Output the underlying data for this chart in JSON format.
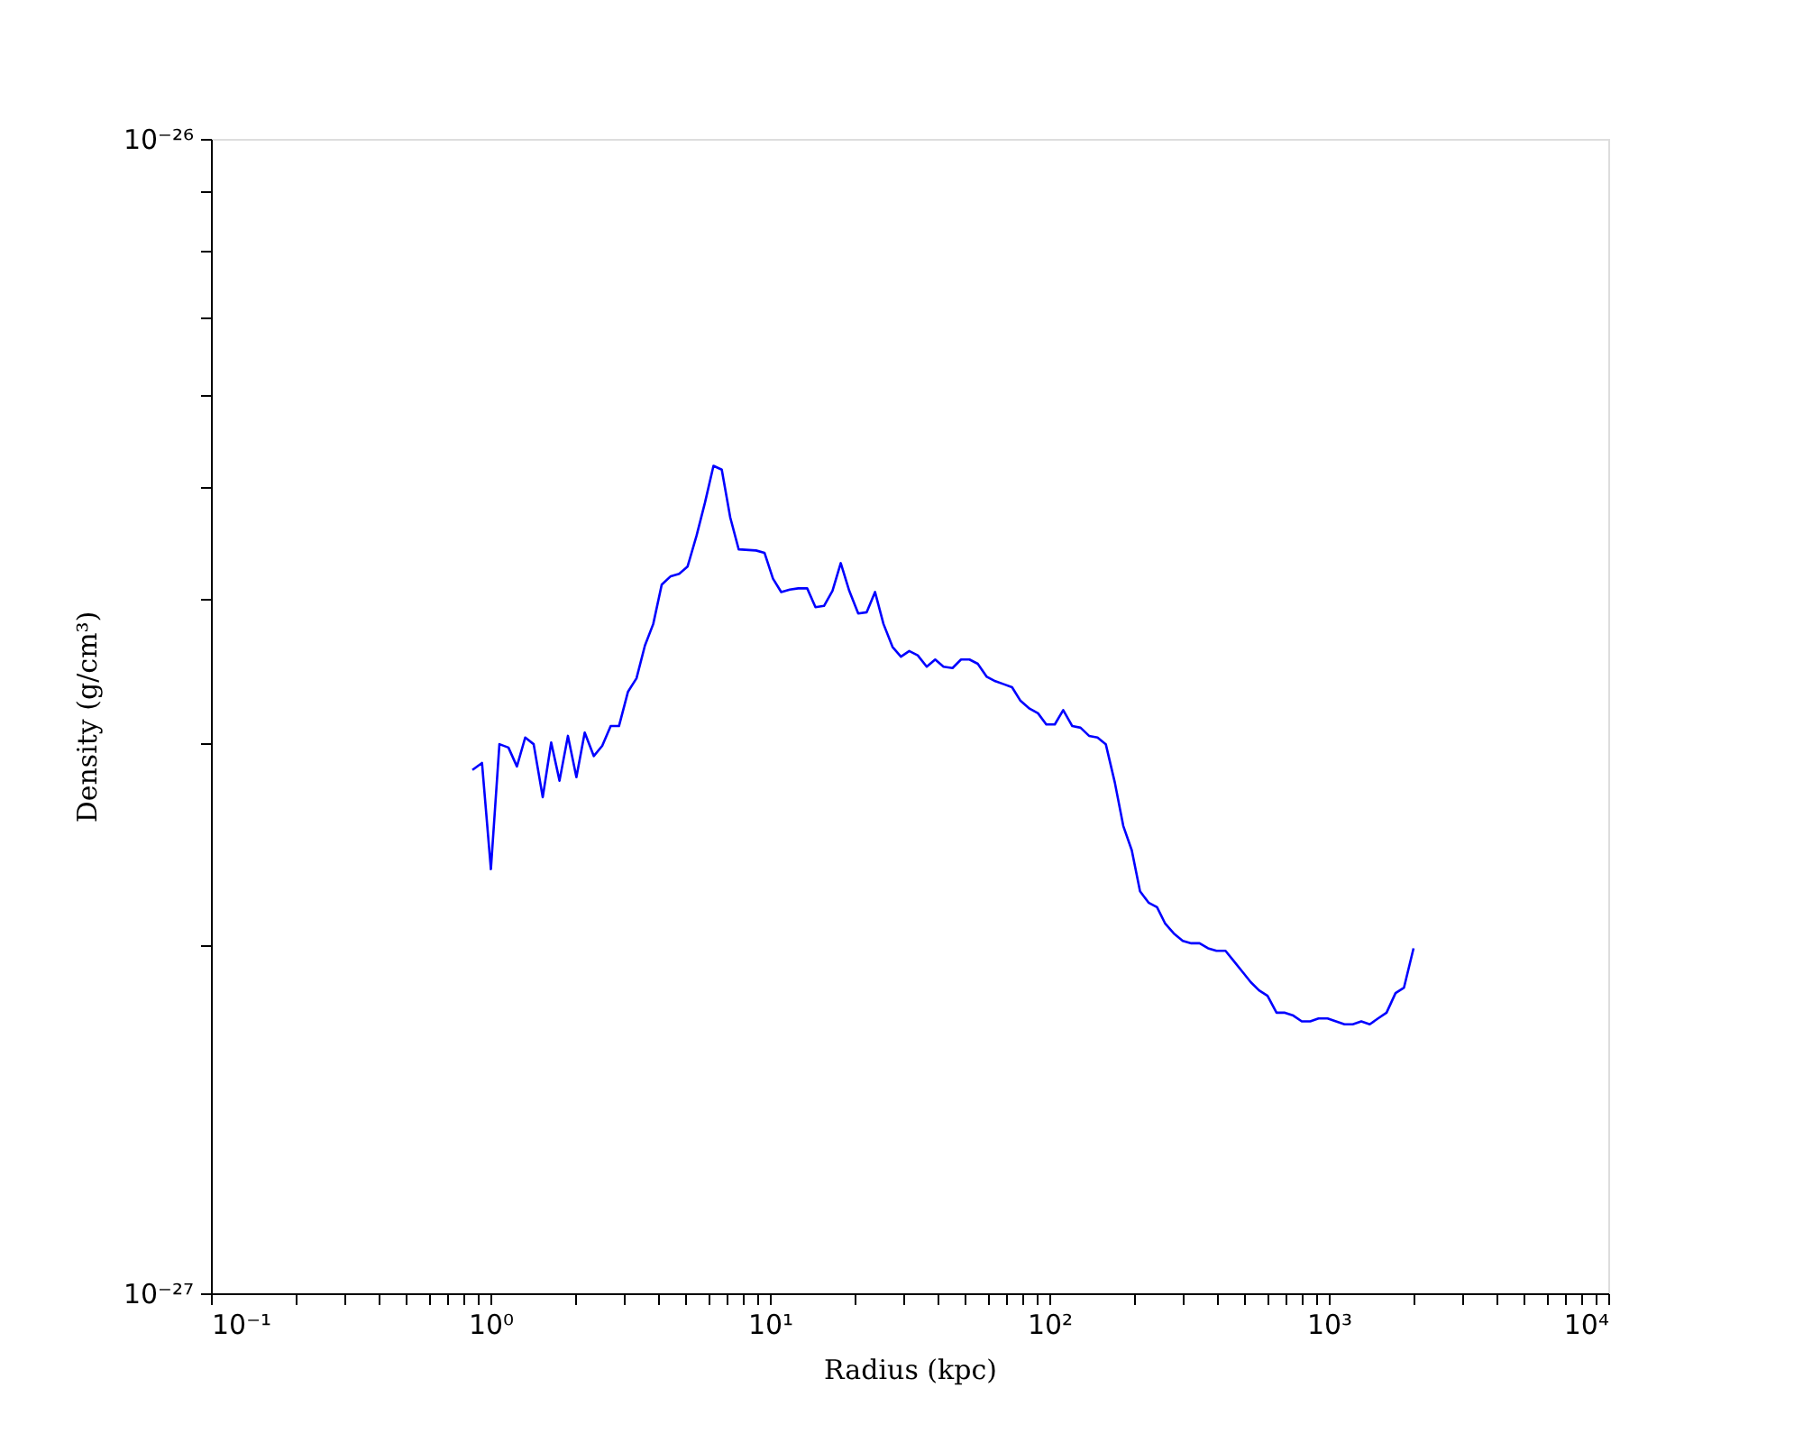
{
  "chart_data": {
    "type": "line",
    "xlabel": "Radius  (kpc)",
    "ylabel": "Density  (g/cm³)",
    "log": "xy",
    "grid": false,
    "marker": "none",
    "line_style": "solid",
    "xlim": [
      0.1,
      10000
    ],
    "ylim": [
      1e-27,
      1e-26
    ],
    "xticks": [
      {
        "value": 0.1,
        "label": "10⁻¹"
      },
      {
        "value": 0.2,
        "label": null
      },
      {
        "value": 0.3,
        "label": null
      },
      {
        "value": 0.4,
        "label": null
      },
      {
        "value": 0.5,
        "label": null
      },
      {
        "value": 0.6,
        "label": null
      },
      {
        "value": 0.7,
        "label": null
      },
      {
        "value": 0.8,
        "label": null
      },
      {
        "value": 0.9,
        "label": null
      },
      {
        "value": 1,
        "label": "10⁰"
      },
      {
        "value": 2,
        "label": null
      },
      {
        "value": 3,
        "label": null
      },
      {
        "value": 4,
        "label": null
      },
      {
        "value": 5,
        "label": null
      },
      {
        "value": 6,
        "label": null
      },
      {
        "value": 7,
        "label": null
      },
      {
        "value": 8,
        "label": null
      },
      {
        "value": 9,
        "label": null
      },
      {
        "value": 10,
        "label": "10¹"
      },
      {
        "value": 20,
        "label": null
      },
      {
        "value": 30,
        "label": null
      },
      {
        "value": 40,
        "label": null
      },
      {
        "value": 50,
        "label": null
      },
      {
        "value": 60,
        "label": null
      },
      {
        "value": 70,
        "label": null
      },
      {
        "value": 80,
        "label": null
      },
      {
        "value": 90,
        "label": null
      },
      {
        "value": 100,
        "label": "10²"
      },
      {
        "value": 200,
        "label": null
      },
      {
        "value": 300,
        "label": null
      },
      {
        "value": 400,
        "label": null
      },
      {
        "value": 500,
        "label": null
      },
      {
        "value": 600,
        "label": null
      },
      {
        "value": 700,
        "label": null
      },
      {
        "value": 800,
        "label": null
      },
      {
        "value": 900,
        "label": null
      },
      {
        "value": 1000,
        "label": "10³"
      },
      {
        "value": 2000,
        "label": null
      },
      {
        "value": 3000,
        "label": null
      },
      {
        "value": 4000,
        "label": null
      },
      {
        "value": 5000,
        "label": null
      },
      {
        "value": 6000,
        "label": null
      },
      {
        "value": 7000,
        "label": null
      },
      {
        "value": 8000,
        "label": null
      },
      {
        "value": 9000,
        "label": null
      },
      {
        "value": 10000,
        "label": "10⁴"
      }
    ],
    "yticks": [
      {
        "value": 1e-27,
        "label": "10⁻²⁷"
      },
      {
        "value": 2e-27,
        "label": null
      },
      {
        "value": 3e-27,
        "label": null
      },
      {
        "value": 4e-27,
        "label": null
      },
      {
        "value": 5e-27,
        "label": null
      },
      {
        "value": 6e-27,
        "label": null
      },
      {
        "value": 7e-27,
        "label": null
      },
      {
        "value": 8e-27,
        "label": null
      },
      {
        "value": 9e-27,
        "label": null
      },
      {
        "value": 1e-26,
        "label": "10⁻²⁶"
      }
    ],
    "series": [
      {
        "color": "#0000ff",
        "x": [
          0.862,
          0.933,
          1.004,
          1.077,
          1.16,
          1.244,
          1.332,
          1.428,
          1.539,
          1.65,
          1.767,
          1.894,
          2.031,
          2.175,
          2.343,
          2.512,
          2.694,
          2.884,
          3.107,
          3.332,
          3.572,
          3.825,
          4.102,
          4.418,
          4.737,
          5.073,
          5.463,
          5.857,
          6.283,
          6.727,
          7.214,
          7.734,
          8.92,
          9.564,
          10.26,
          10.98,
          11.78,
          12.63,
          13.6,
          14.56,
          15.62,
          16.75,
          17.93,
          19.23,
          20.71,
          22.21,
          23.78,
          25.5,
          27.47,
          29.44,
          31.53,
          33.81,
          36.41,
          39.04,
          41.81,
          45.03,
          48.3,
          51.79,
          55.45,
          59.72,
          64.05,
          68.68,
          73.55,
          78.86,
          84.92,
          91.08,
          97.5,
          104.6,
          112.1,
          120.8,
          129.3,
          138.7,
          148.7,
          159.2,
          171.5,
          183.9,
          197.2,
          211.1,
          226.4,
          242.8,
          259.9,
          278.7,
          300.2,
          321.9,
          344.7,
          369.7,
          396.3,
          426.9,
          457.1,
          490.1,
          525.6,
          562.8,
          603.4,
          650.1,
          696.8,
          746.4,
          800.4,
          858.1,
          918.9,
          989.7,
          1061,
          1138,
          1218,
          1307,
          1401,
          1500,
          1609,
          1733,
          1858,
          2010
        ],
        "values": [
          2.84e-27,
          2.88e-27,
          2.33e-27,
          2.99e-27,
          2.97e-27,
          2.86e-27,
          3.03e-27,
          2.99e-27,
          2.69e-27,
          3e-27,
          2.78e-27,
          3.04e-27,
          2.8e-27,
          3.06e-27,
          2.92e-27,
          2.98e-27,
          3.1e-27,
          3.1e-27,
          3.32e-27,
          3.41e-27,
          3.64e-27,
          3.8e-27,
          4.11e-27,
          4.18e-27,
          4.2e-27,
          4.26e-27,
          4.53e-27,
          4.84e-27,
          5.21e-27,
          5.17e-27,
          4.7e-27,
          4.41e-27,
          4.4e-27,
          4.38e-27,
          4.16e-27,
          4.05e-27,
          4.07e-27,
          4.08e-27,
          4.08e-27,
          3.93e-27,
          3.94e-27,
          4.06e-27,
          4.29e-27,
          4.06e-27,
          3.88e-27,
          3.89e-27,
          4.05e-27,
          3.8e-27,
          3.63e-27,
          3.56e-27,
          3.6e-27,
          3.57e-27,
          3.49e-27,
          3.54e-27,
          3.49e-27,
          3.48e-27,
          3.54e-27,
          3.54e-27,
          3.51e-27,
          3.42e-27,
          3.39e-27,
          3.37e-27,
          3.35e-27,
          3.26e-27,
          3.21e-27,
          3.18e-27,
          3.11e-27,
          3.11e-27,
          3.2e-27,
          3.1e-27,
          3.09e-27,
          3.04e-27,
          3.03e-27,
          2.99e-27,
          2.77e-27,
          2.54e-27,
          2.42e-27,
          2.23e-27,
          2.18e-27,
          2.16e-27,
          2.09e-27,
          2.05e-27,
          2.02e-27,
          2.01e-27,
          2.01e-27,
          1.99e-27,
          1.98e-27,
          1.98e-27,
          1.94e-27,
          1.9e-27,
          1.86e-27,
          1.83e-27,
          1.81e-27,
          1.75e-27,
          1.75e-27,
          1.74e-27,
          1.72e-27,
          1.72e-27,
          1.73e-27,
          1.73e-27,
          1.72e-27,
          1.71e-27,
          1.71e-27,
          1.72e-27,
          1.71e-27,
          1.73e-27,
          1.75e-27,
          1.82e-27,
          1.84e-27,
          1.99e-27
        ]
      }
    ]
  }
}
